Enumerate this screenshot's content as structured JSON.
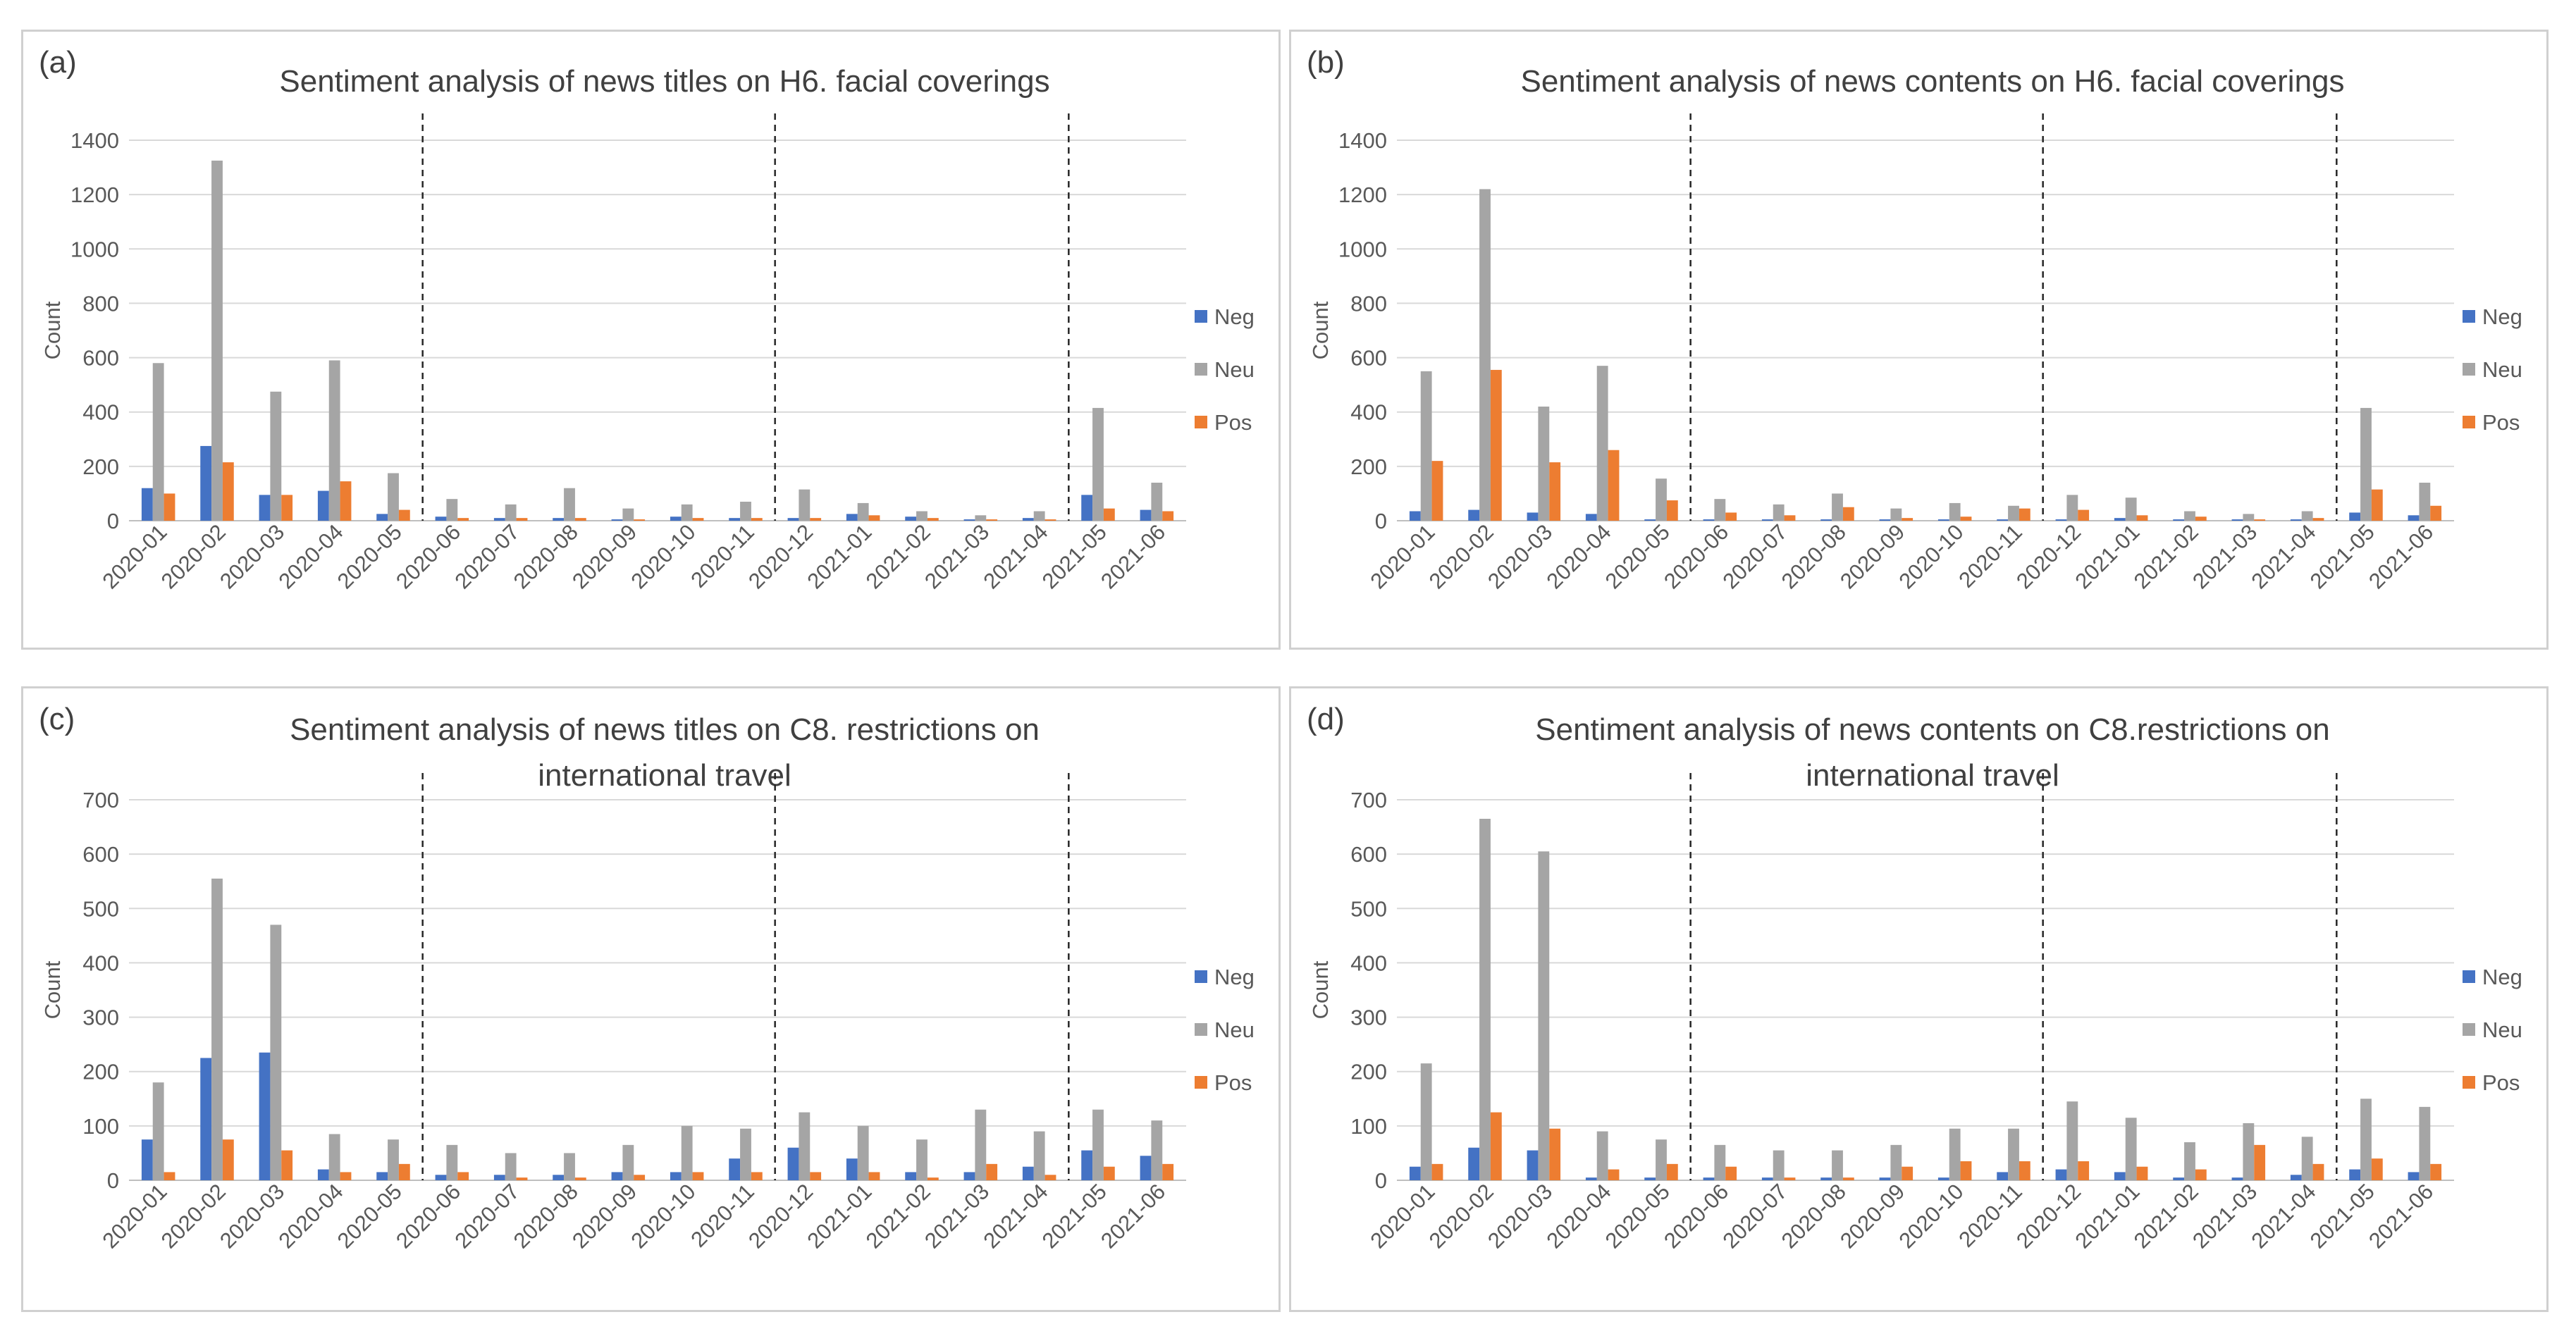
{
  "colors": {
    "neg": "#4472c4",
    "neu": "#a5a5a5",
    "pos": "#ed7d31",
    "grid": "#d9d9d9",
    "text": "#595959"
  },
  "chart_data": [
    {
      "id": "a",
      "label": "(a)",
      "type": "bar",
      "title": [
        "Sentiment analysis of news titles on H6. facial coverings"
      ],
      "xlabel": "",
      "ylabel": "Count",
      "ylim": [
        0,
        1400
      ],
      "yticks": [
        0,
        200,
        400,
        600,
        800,
        1000,
        1200,
        1400
      ],
      "categories": [
        "2020-01",
        "2020-02",
        "2020-03",
        "2020-04",
        "2020-05",
        "2020-06",
        "2020-07",
        "2020-08",
        "2020-09",
        "2020-10",
        "2020-11",
        "2020-12",
        "2021-01",
        "2021-02",
        "2021-03",
        "2021-04",
        "2021-05",
        "2021-06"
      ],
      "series": [
        {
          "name": "Neg",
          "values": [
            120,
            275,
            95,
            110,
            25,
            15,
            10,
            10,
            5,
            15,
            10,
            10,
            25,
            15,
            5,
            10,
            95,
            40
          ]
        },
        {
          "name": "Neu",
          "values": [
            580,
            1325,
            475,
            590,
            175,
            80,
            60,
            120,
            45,
            60,
            70,
            115,
            65,
            35,
            20,
            35,
            415,
            140
          ]
        },
        {
          "name": "Pos",
          "values": [
            100,
            215,
            95,
            145,
            40,
            10,
            10,
            10,
            5,
            10,
            10,
            10,
            20,
            10,
            5,
            5,
            45,
            35
          ]
        }
      ],
      "dividers_after": [
        "2020-05",
        "2020-11",
        "2021-04"
      ],
      "legend": "right"
    },
    {
      "id": "b",
      "label": "(b)",
      "type": "bar",
      "title": [
        "Sentiment analysis of news contents on H6. facial coverings"
      ],
      "xlabel": "",
      "ylabel": "Count",
      "ylim": [
        0,
        1400
      ],
      "yticks": [
        0,
        200,
        400,
        600,
        800,
        1000,
        1200,
        1400
      ],
      "categories": [
        "2020-01",
        "2020-02",
        "2020-03",
        "2020-04",
        "2020-05",
        "2020-06",
        "2020-07",
        "2020-08",
        "2020-09",
        "2020-10",
        "2020-11",
        "2020-12",
        "2021-01",
        "2021-02",
        "2021-03",
        "2021-04",
        "2021-05",
        "2021-06"
      ],
      "series": [
        {
          "name": "Neg",
          "values": [
            35,
            40,
            30,
            25,
            5,
            5,
            5,
            5,
            5,
            5,
            5,
            5,
            10,
            5,
            5,
            5,
            30,
            20
          ]
        },
        {
          "name": "Neu",
          "values": [
            550,
            1220,
            420,
            570,
            155,
            80,
            60,
            100,
            45,
            65,
            55,
            95,
            85,
            35,
            25,
            35,
            415,
            140
          ]
        },
        {
          "name": "Pos",
          "values": [
            220,
            555,
            215,
            260,
            75,
            30,
            20,
            50,
            10,
            15,
            45,
            40,
            20,
            15,
            5,
            10,
            115,
            55
          ]
        }
      ],
      "dividers_after": [
        "2020-05",
        "2020-11",
        "2021-04"
      ],
      "legend": "right"
    },
    {
      "id": "c",
      "label": "(c)",
      "type": "bar",
      "title": [
        "Sentiment analysis of news titles on C8. restrictions on",
        "international travel"
      ],
      "xlabel": "",
      "ylabel": "Count",
      "ylim": [
        0,
        700
      ],
      "yticks": [
        0,
        100,
        200,
        300,
        400,
        500,
        600,
        700
      ],
      "categories": [
        "2020-01",
        "2020-02",
        "2020-03",
        "2020-04",
        "2020-05",
        "2020-06",
        "2020-07",
        "2020-08",
        "2020-09",
        "2020-10",
        "2020-11",
        "2020-12",
        "2021-01",
        "2021-02",
        "2021-03",
        "2021-04",
        "2021-05",
        "2021-06"
      ],
      "series": [
        {
          "name": "Neg",
          "values": [
            75,
            225,
            235,
            20,
            15,
            10,
            10,
            10,
            15,
            15,
            40,
            60,
            40,
            15,
            15,
            25,
            55,
            45
          ]
        },
        {
          "name": "Neu",
          "values": [
            180,
            555,
            470,
            85,
            75,
            65,
            50,
            50,
            65,
            100,
            95,
            125,
            100,
            75,
            130,
            90,
            130,
            110
          ]
        },
        {
          "name": "Pos",
          "values": [
            15,
            75,
            55,
            15,
            30,
            15,
            5,
            5,
            10,
            15,
            15,
            15,
            15,
            5,
            30,
            10,
            25,
            30
          ]
        }
      ],
      "dividers_after": [
        "2020-05",
        "2020-11",
        "2021-04"
      ],
      "legend": "right"
    },
    {
      "id": "d",
      "label": "(d)",
      "type": "bar",
      "title": [
        "Sentiment analysis of news contents on C8.restrictions on",
        "international travel"
      ],
      "xlabel": "",
      "ylabel": "Count",
      "ylim": [
        0,
        700
      ],
      "yticks": [
        0,
        100,
        200,
        300,
        400,
        500,
        600,
        700
      ],
      "categories": [
        "2020-01",
        "2020-02",
        "2020-03",
        "2020-04",
        "2020-05",
        "2020-06",
        "2020-07",
        "2020-08",
        "2020-09",
        "2020-10",
        "2020-11",
        "2020-12",
        "2021-01",
        "2021-02",
        "2021-03",
        "2021-04",
        "2021-05",
        "2021-06"
      ],
      "series": [
        {
          "name": "Neg",
          "values": [
            25,
            60,
            55,
            5,
            5,
            5,
            5,
            5,
            5,
            5,
            15,
            20,
            15,
            5,
            5,
            10,
            20,
            15
          ]
        },
        {
          "name": "Neu",
          "values": [
            215,
            665,
            605,
            90,
            75,
            65,
            55,
            55,
            65,
            95,
            95,
            145,
            115,
            70,
            105,
            80,
            150,
            135
          ]
        },
        {
          "name": "Pos",
          "values": [
            30,
            125,
            95,
            20,
            30,
            25,
            5,
            5,
            25,
            35,
            35,
            35,
            25,
            20,
            65,
            30,
            40,
            30
          ]
        }
      ],
      "dividers_after": [
        "2020-05",
        "2020-11",
        "2021-04"
      ],
      "legend": "right"
    }
  ]
}
